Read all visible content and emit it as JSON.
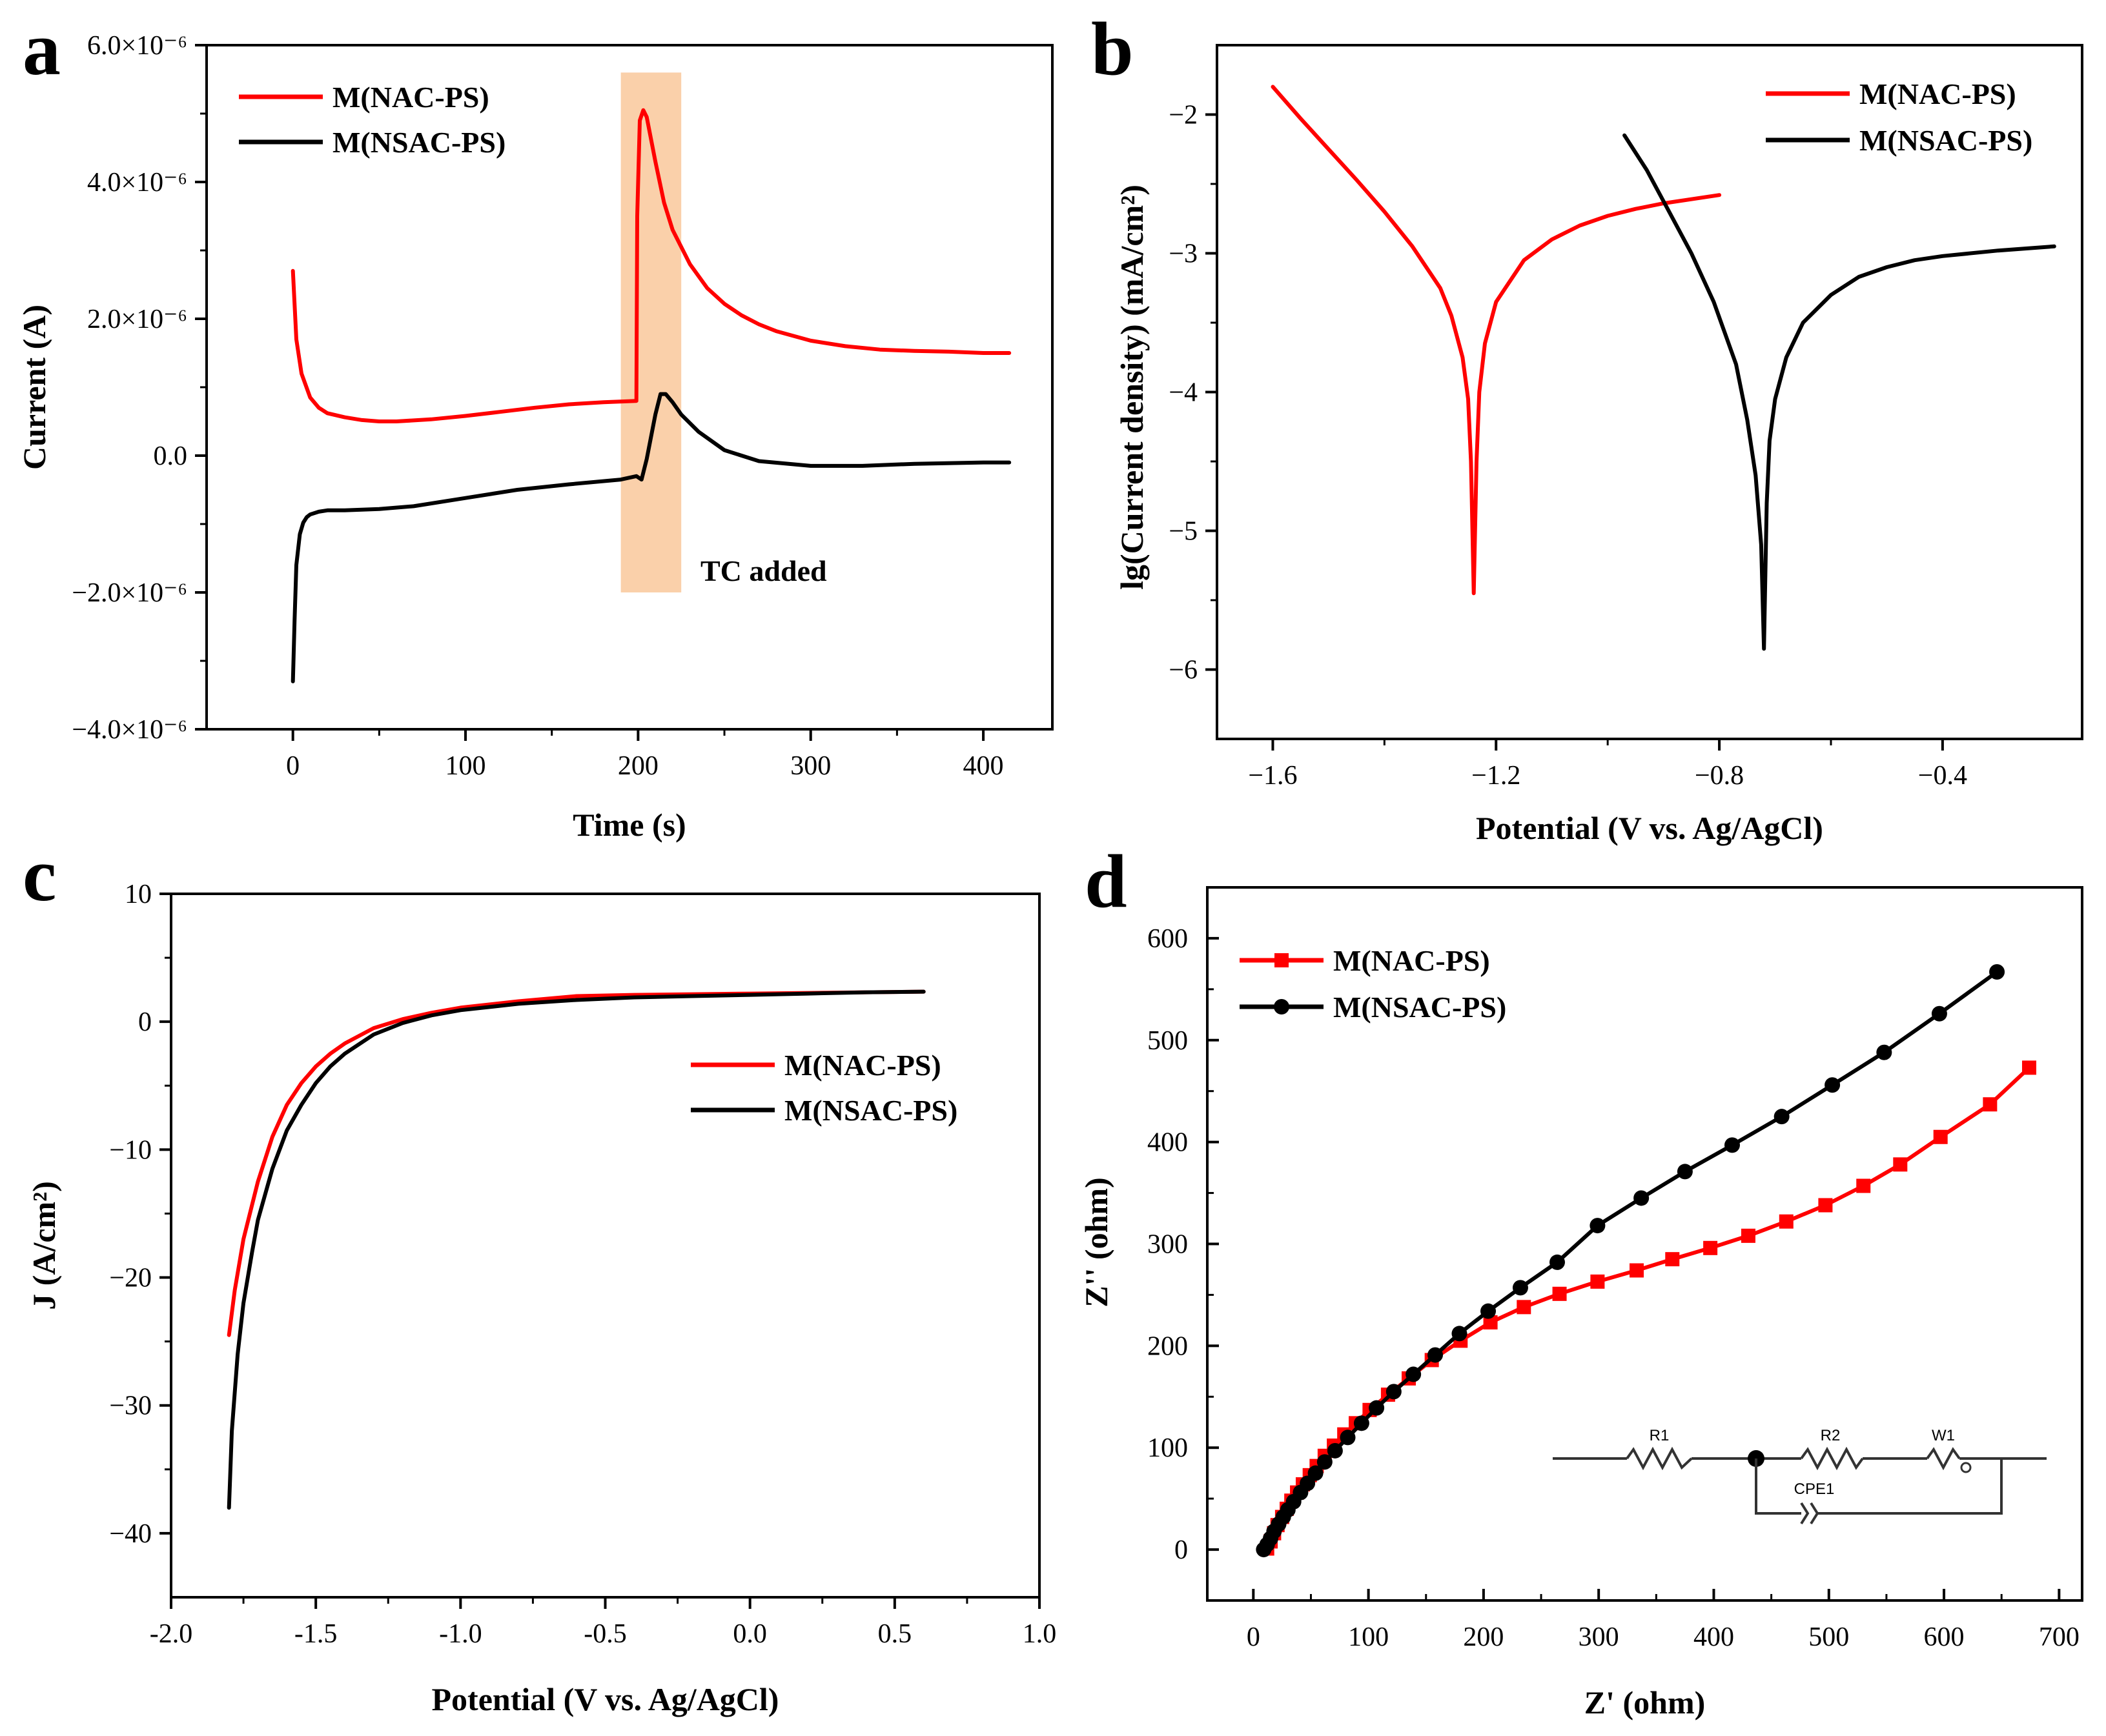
{
  "colors": {
    "red": "#ff0000",
    "black": "#000000",
    "highlight": "#f9c89b"
  },
  "chart_data": [
    {
      "panel": "a",
      "type": "line",
      "xlabel": "Time (s)",
      "ylabel": "Current (A)",
      "xlim": [
        -50,
        440
      ],
      "ylim": [
        -4e-06,
        6e-06
      ],
      "xticks": [
        0,
        100,
        200,
        300,
        400
      ],
      "xtick_labels": [
        "0",
        "100",
        "200",
        "300",
        "400"
      ],
      "yticks": [
        -4e-06,
        -2e-06,
        0,
        2e-06,
        4e-06,
        6e-06
      ],
      "ytick_labels": [
        "−4.0×10⁻⁶",
        "−2.0×10⁻⁶",
        "0.0",
        "2.0×10⁻⁶",
        "4.0×10⁻⁶",
        "6.0×10⁻⁶"
      ],
      "annotation": "TC added",
      "highlight_range": [
        190,
        225
      ],
      "legend_position": "top-left",
      "series": [
        {
          "name": "M(NAC-PS)",
          "color": "#ff0000",
          "x": [
            0,
            2,
            5,
            10,
            15,
            20,
            30,
            40,
            50,
            60,
            80,
            100,
            120,
            140,
            160,
            180,
            199,
            199.5,
            201,
            203,
            205,
            210,
            215,
            220,
            230,
            240,
            250,
            260,
            270,
            280,
            300,
            320,
            340,
            360,
            380,
            400,
            415
          ],
          "y": [
            2.7e-06,
            1.7e-06,
            1.2e-06,
            8.5e-07,
            7e-07,
            6.2e-07,
            5.6e-07,
            5.2e-07,
            5e-07,
            5e-07,
            5.3e-07,
            5.8e-07,
            6.4e-07,
            7e-07,
            7.5e-07,
            7.8e-07,
            8e-07,
            3.5e-06,
            4.9e-06,
            5.05e-06,
            4.95e-06,
            4.3e-06,
            3.7e-06,
            3.3e-06,
            2.8e-06,
            2.45e-06,
            2.22e-06,
            2.05e-06,
            1.92e-06,
            1.82e-06,
            1.68e-06,
            1.6e-06,
            1.55e-06,
            1.53e-06,
            1.52e-06,
            1.5e-06,
            1.5e-06
          ]
        },
        {
          "name": "M(NSAC-PS)",
          "color": "#000000",
          "x": [
            0,
            1,
            2,
            4,
            6,
            8,
            10,
            15,
            20,
            30,
            50,
            70,
            100,
            130,
            160,
            190,
            199,
            202,
            205,
            210,
            213,
            216,
            220,
            225,
            235,
            250,
            270,
            300,
            330,
            360,
            400,
            415
          ],
          "y": [
            -3.3e-06,
            -2.4e-06,
            -1.6e-06,
            -1.15e-06,
            -9.8e-07,
            -9e-07,
            -8.6e-07,
            -8.2e-07,
            -8e-07,
            -8e-07,
            -7.8e-07,
            -7.4e-07,
            -6.2e-07,
            -5e-07,
            -4.2e-07,
            -3.5e-07,
            -3e-07,
            -3.5e-07,
            -5e-08,
            6e-07,
            9e-07,
            9e-07,
            7.8e-07,
            6e-07,
            3.5e-07,
            8e-08,
            -8e-08,
            -1.5e-07,
            -1.5e-07,
            -1.2e-07,
            -1e-07,
            -1e-07
          ]
        }
      ]
    },
    {
      "panel": "b",
      "type": "line",
      "xlabel": "Potential (V vs. Ag/AgCl)",
      "ylabel": "lg(Current density) (mA/cm²)",
      "xlim": [
        -1.7,
        -0.15
      ],
      "ylim": [
        -6.5,
        -1.5
      ],
      "xticks": [
        -1.6,
        -1.2,
        -0.8,
        -0.4
      ],
      "xtick_labels": [
        "−1.6",
        "−1.2",
        "−0.8",
        "−0.4"
      ],
      "yticks": [
        -6,
        -5,
        -4,
        -3,
        -2
      ],
      "ytick_labels": [
        "−6",
        "−5",
        "−4",
        "−3",
        "−2"
      ],
      "legend_position": "top-right",
      "series": [
        {
          "name": "M(NAC-PS)",
          "color": "#ff0000",
          "x": [
            -1.6,
            -1.55,
            -1.5,
            -1.45,
            -1.4,
            -1.35,
            -1.3,
            -1.28,
            -1.26,
            -1.25,
            -1.245,
            -1.24,
            -1.235,
            -1.23,
            -1.22,
            -1.2,
            -1.15,
            -1.1,
            -1.05,
            -1.0,
            -0.95,
            -0.9,
            -0.8
          ],
          "y": [
            -1.8,
            -2.03,
            -2.25,
            -2.47,
            -2.7,
            -2.95,
            -3.25,
            -3.45,
            -3.75,
            -4.05,
            -4.5,
            -5.45,
            -4.5,
            -4.0,
            -3.65,
            -3.35,
            -3.05,
            -2.9,
            -2.8,
            -2.73,
            -2.68,
            -2.64,
            -2.58
          ]
        },
        {
          "name": "M(NSAC-PS)",
          "color": "#000000",
          "x": [
            -0.97,
            -0.93,
            -0.89,
            -0.85,
            -0.81,
            -0.77,
            -0.75,
            -0.735,
            -0.725,
            -0.72,
            -0.715,
            -0.71,
            -0.7,
            -0.68,
            -0.65,
            -0.6,
            -0.55,
            -0.5,
            -0.45,
            -0.4,
            -0.3,
            -0.2
          ],
          "y": [
            -2.15,
            -2.4,
            -2.7,
            -3.0,
            -3.35,
            -3.8,
            -4.2,
            -4.6,
            -5.1,
            -5.85,
            -4.8,
            -4.35,
            -4.05,
            -3.75,
            -3.5,
            -3.3,
            -3.17,
            -3.1,
            -3.05,
            -3.02,
            -2.98,
            -2.95
          ]
        }
      ]
    },
    {
      "panel": "c",
      "type": "line",
      "xlabel": "Potential (V vs. Ag/AgCl)",
      "ylabel": "J (A/cm²)",
      "xlim": [
        -2.0,
        1.0
      ],
      "ylim": [
        -45,
        10
      ],
      "xticks": [
        -2.0,
        -1.5,
        -1.0,
        -0.5,
        0.0,
        0.5,
        1.0
      ],
      "xtick_labels": [
        "-2.0",
        "-1.5",
        "-1.0",
        "-0.5",
        "0.0",
        "0.5",
        "1.0"
      ],
      "yticks": [
        -40,
        -30,
        -20,
        -10,
        0,
        10
      ],
      "ytick_labels": [
        "−40",
        "−30",
        "−20",
        "−10",
        "0",
        "10"
      ],
      "legend_position": "center-right",
      "series": [
        {
          "name": "M(NAC-PS)",
          "color": "#ff0000",
          "x": [
            -1.8,
            -1.78,
            -1.75,
            -1.7,
            -1.65,
            -1.6,
            -1.55,
            -1.5,
            -1.45,
            -1.4,
            -1.3,
            -1.2,
            -1.1,
            -1.0,
            -0.8,
            -0.6,
            -0.4,
            -0.2,
            0.0,
            0.2,
            0.4,
            0.6
          ],
          "y": [
            -24.5,
            -21,
            -17,
            -12.5,
            -9,
            -6.5,
            -4.8,
            -3.5,
            -2.5,
            -1.7,
            -0.5,
            0.2,
            0.7,
            1.1,
            1.6,
            2.0,
            2.1,
            2.15,
            2.2,
            2.25,
            2.3,
            2.35
          ]
        },
        {
          "name": "M(NSAC-PS)",
          "color": "#000000",
          "x": [
            -1.8,
            -1.79,
            -1.77,
            -1.75,
            -1.72,
            -1.7,
            -1.65,
            -1.6,
            -1.55,
            -1.5,
            -1.45,
            -1.4,
            -1.3,
            -1.2,
            -1.1,
            -1.0,
            -0.8,
            -0.6,
            -0.4,
            -0.2,
            0.0,
            0.2,
            0.4,
            0.6
          ],
          "y": [
            -38,
            -32,
            -26,
            -22,
            -18,
            -15.5,
            -11.5,
            -8.5,
            -6.5,
            -4.8,
            -3.5,
            -2.5,
            -1.0,
            -0.1,
            0.5,
            0.9,
            1.4,
            1.7,
            1.9,
            2.0,
            2.1,
            2.2,
            2.3,
            2.35
          ]
        }
      ]
    },
    {
      "panel": "d",
      "type": "scatter",
      "xlabel": "Z' (ohm)",
      "ylabel": "Z'' (ohm)",
      "xlim": [
        -40,
        720
      ],
      "ylim": [
        -50,
        650
      ],
      "xticks": [
        0,
        100,
        200,
        300,
        400,
        500,
        600,
        700
      ],
      "xtick_labels": [
        "0",
        "100",
        "200",
        "300",
        "400",
        "500",
        "600",
        "700"
      ],
      "yticks": [
        0,
        100,
        200,
        300,
        400,
        500,
        600
      ],
      "ytick_labels": [
        "0",
        "100",
        "200",
        "300",
        "400",
        "500",
        "600"
      ],
      "legend_position": "top-left",
      "inset": {
        "type": "equivalent-circuit",
        "labels": [
          "R1",
          "R2",
          "W1",
          "CPE1"
        ]
      },
      "series": [
        {
          "name": "M(NAC-PS)",
          "color": "#ff0000",
          "marker": "square",
          "x": [
            12,
            15,
            18,
            21,
            25,
            29,
            33,
            38,
            43,
            49,
            55,
            62,
            70,
            79,
            89,
            101,
            117,
            135,
            155,
            180,
            206,
            235,
            266,
            299,
            333,
            364,
            397,
            430,
            463,
            497,
            530,
            562,
            597,
            640,
            674
          ],
          "y": [
            1,
            8,
            16,
            24,
            32,
            40,
            48,
            56,
            64,
            73,
            82,
            92,
            102,
            113,
            124,
            137,
            152,
            168,
            186,
            205,
            223,
            238,
            251,
            263,
            274,
            285,
            296,
            308,
            322,
            338,
            357,
            378,
            405,
            437,
            473
          ]
        },
        {
          "name": "M(NSAC-PS)",
          "color": "#000000",
          "marker": "circle",
          "x": [
            9,
            12,
            15,
            18,
            22,
            26,
            30,
            35,
            41,
            47,
            54,
            62,
            71,
            82,
            94,
            107,
            122,
            139,
            158,
            179,
            204,
            232,
            264,
            299,
            337,
            375,
            416,
            459,
            503,
            548,
            596,
            646
          ],
          "y": [
            0,
            5,
            11,
            18,
            25,
            32,
            39,
            47,
            56,
            65,
            75,
            86,
            97,
            110,
            124,
            139,
            155,
            172,
            191,
            212,
            234,
            257,
            282,
            318,
            345,
            371,
            397,
            425,
            456,
            488,
            526,
            567
          ]
        }
      ]
    }
  ]
}
